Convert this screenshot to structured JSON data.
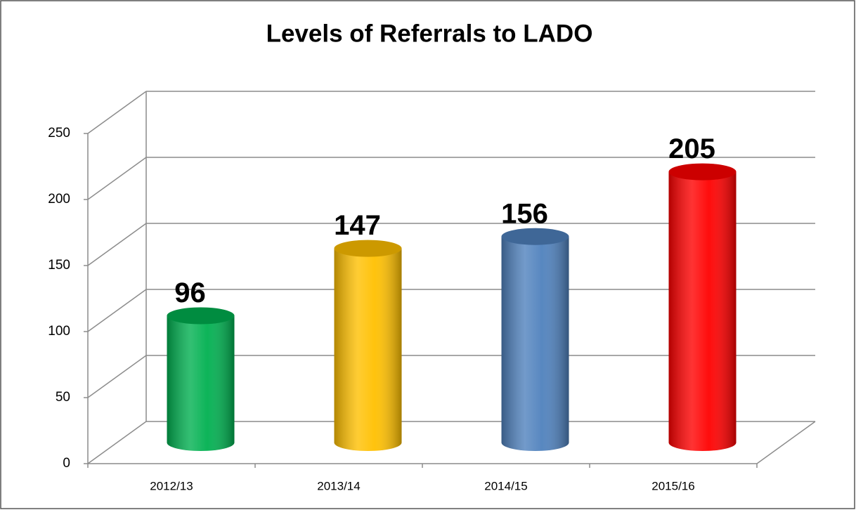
{
  "chart_data": {
    "type": "bar3d",
    "title": "Levels of Referrals to LADO",
    "categories": [
      "2012/13",
      "2013/14",
      "2014/15",
      "2015/16"
    ],
    "values": [
      96,
      147,
      156,
      205
    ],
    "colors": [
      "#00b050",
      "#ffc000",
      "#4f81bd",
      "#ff0000"
    ],
    "ylim": [
      0,
      250
    ],
    "yticks": [
      0,
      50,
      100,
      150,
      200,
      250
    ],
    "grid": true
  }
}
